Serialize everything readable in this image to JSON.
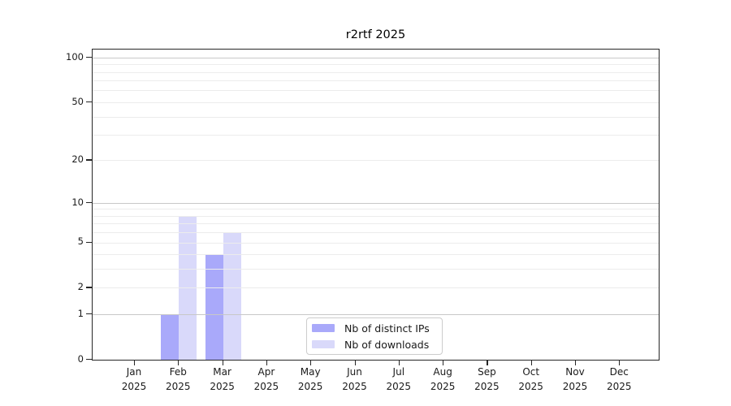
{
  "title": "r2rtf 2025",
  "legend": {
    "items": [
      {
        "label": "Nb of distinct IPs",
        "color": "#a9a9fa"
      },
      {
        "label": "Nb of downloads",
        "color": "#d9d9fa"
      }
    ]
  },
  "chart_data": {
    "type": "bar",
    "title": "r2rtf 2025",
    "categories": [
      "Jan 2025",
      "Feb 2025",
      "Mar 2025",
      "Apr 2025",
      "May 2025",
      "Jun 2025",
      "Jul 2025",
      "Aug 2025",
      "Sep 2025",
      "Oct 2025",
      "Nov 2025",
      "Dec 2025"
    ],
    "series": [
      {
        "name": "Nb of distinct IPs",
        "color": "#a9a9fa",
        "values": [
          0,
          1,
          4,
          0,
          0,
          0,
          0,
          0,
          0,
          0,
          0,
          0
        ]
      },
      {
        "name": "Nb of downloads",
        "color": "#d9d9fa",
        "values": [
          0,
          8,
          6,
          0,
          0,
          0,
          0,
          0,
          0,
          0,
          0,
          0
        ]
      }
    ],
    "xlabel": "",
    "ylabel": "",
    "yscale": "log1p",
    "ylim": [
      0,
      113
    ],
    "yticks": [
      0,
      1,
      2,
      5,
      10,
      20,
      50,
      100
    ],
    "gridlines_minor": [
      2,
      3,
      4,
      5,
      6,
      7,
      8,
      9,
      20,
      30,
      40,
      50,
      60,
      70,
      80,
      90
    ],
    "gridlines_major": [
      1,
      10,
      100
    ],
    "grid": true,
    "legend_position": "lower center"
  },
  "colors": {
    "grid_minor": "#ececec",
    "grid_major": "#c8c8c8",
    "axis": "#262626",
    "text": "#1a1a1a",
    "background": "#ffffff"
  }
}
